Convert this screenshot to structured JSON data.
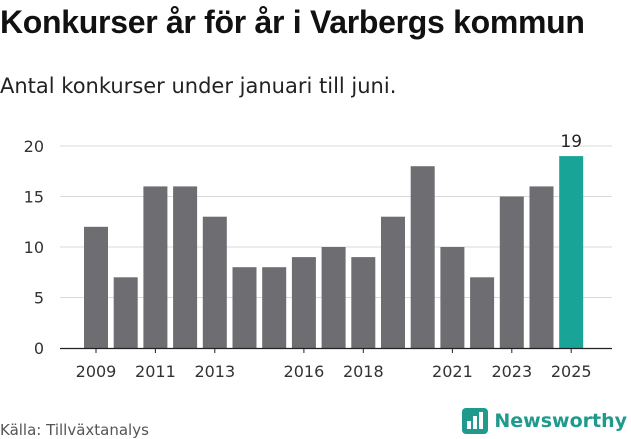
{
  "title": "Konkurser år för år i Varbergs kommun",
  "subtitle": "Antal konkurser under januari till juni.",
  "source": "Källa: Tillväxtanalys",
  "brand": {
    "name": "Newsworthy",
    "logo_icon": "bar-chart-logo-icon"
  },
  "colors": {
    "bar": "#6e6d72",
    "highlight": "#18a598",
    "grid": "#d9d9d9",
    "axis": "#222222",
    "brand": "#1f9a8c"
  },
  "chart_data": {
    "type": "bar",
    "title": "Konkurser år för år i Varbergs kommun",
    "subtitle": "Antal konkurser under januari till juni.",
    "xlabel": "",
    "ylabel": "",
    "categories": [
      "2009",
      "2010",
      "2011",
      "2012",
      "2013",
      "2014",
      "2015",
      "2016",
      "2017",
      "2018",
      "2019",
      "2020",
      "2021",
      "2022",
      "2023",
      "2024",
      "2025"
    ],
    "x_tick_labels": [
      "2009",
      "2011",
      "2013",
      "2016",
      "2018",
      "2021",
      "2023",
      "2025"
    ],
    "values": [
      12,
      7,
      16,
      16,
      13,
      8,
      8,
      9,
      10,
      9,
      13,
      18,
      10,
      7,
      15,
      16,
      19
    ],
    "highlight_category": "2025",
    "data_labels": [
      {
        "category": "2025",
        "text": "19"
      }
    ],
    "ylim": [
      0,
      20
    ],
    "yticks": [
      0,
      5,
      10,
      15,
      20
    ],
    "grid": true,
    "legend": "none"
  }
}
